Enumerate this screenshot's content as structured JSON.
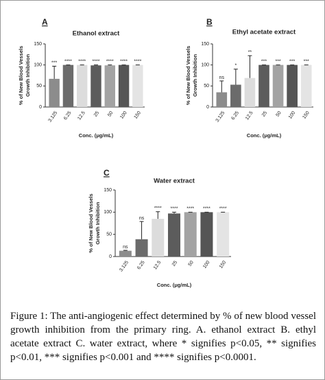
{
  "chart_data": [
    {
      "type": "bar",
      "panel": "A",
      "title": "Ethanol extract",
      "ylabel": [
        "% of New Blood Vessels",
        "Growth Inhibition"
      ],
      "xlabel": "Conc. (μg/mL)",
      "categories": [
        "3.125",
        "6.25",
        "12.5",
        "25",
        "50",
        "100",
        "150"
      ],
      "values": [
        67,
        100,
        100,
        99,
        99,
        100,
        100
      ],
      "errors": [
        30,
        0,
        0,
        1,
        1,
        0,
        0
      ],
      "significance": [
        "***",
        "****",
        "****",
        "****",
        "****",
        "****",
        "****"
      ],
      "colors": [
        "#8c8c8c",
        "#6b6b6b",
        "#dcdcdc",
        "#5c5c5c",
        "#a3a3a3",
        "#555555",
        "#e4e4e4"
      ],
      "ylim": [
        0,
        150
      ],
      "yticks": [
        0,
        50,
        100,
        150
      ]
    },
    {
      "type": "bar",
      "panel": "B",
      "title": "Ethyl acetate extract",
      "ylabel": [
        "% of New Blood Vessels",
        "Growth Inhibition"
      ],
      "xlabel": "Conc. (μg/mL)",
      "categories": [
        "3.125",
        "6.25",
        "12.5",
        "25",
        "50",
        "100",
        "150"
      ],
      "values": [
        35,
        53,
        69,
        100,
        100,
        100,
        100
      ],
      "errors": [
        27,
        37,
        53,
        0,
        0,
        0,
        0
      ],
      "significance": [
        "ns",
        "*",
        "**",
        "***",
        "***",
        "***",
        "***"
      ],
      "colors": [
        "#8c8c8c",
        "#6b6b6b",
        "#dcdcdc",
        "#5c5c5c",
        "#a3a3a3",
        "#555555",
        "#e4e4e4"
      ],
      "ylim": [
        0,
        150
      ],
      "yticks": [
        0,
        50,
        100,
        150
      ]
    },
    {
      "type": "bar",
      "panel": "C",
      "title": "Water extract",
      "ylabel": [
        "% of New Blood Vessels",
        "Growth Inhibition"
      ],
      "xlabel": "Conc. (μg/mL)",
      "categories": [
        "3.125",
        "6.25",
        "12.5",
        "25",
        "50",
        "100",
        "150"
      ],
      "values": [
        13,
        39,
        85,
        97,
        100,
        100,
        100
      ],
      "errors": [
        1,
        40,
        16,
        3,
        0,
        0,
        0
      ],
      "significance": [
        "ns",
        "ns",
        "****",
        "****",
        "****",
        "****",
        "****"
      ],
      "colors": [
        "#8c8c8c",
        "#6b6b6b",
        "#dcdcdc",
        "#5c5c5c",
        "#a3a3a3",
        "#555555",
        "#e4e4e4"
      ],
      "ylim": [
        0,
        150
      ],
      "yticks": [
        0,
        50,
        100,
        150
      ]
    }
  ],
  "caption": "Figure 1: The anti-angiogenic effect determined by % of new blood vessel growth inhibition from the primary ring. A. ethanol extract B. ethyl acetate extract C. water extract, where * signifies p<0.05, ** signifies p<0.01, *** signifies p<0.001 and **** signifies p<0.0001."
}
